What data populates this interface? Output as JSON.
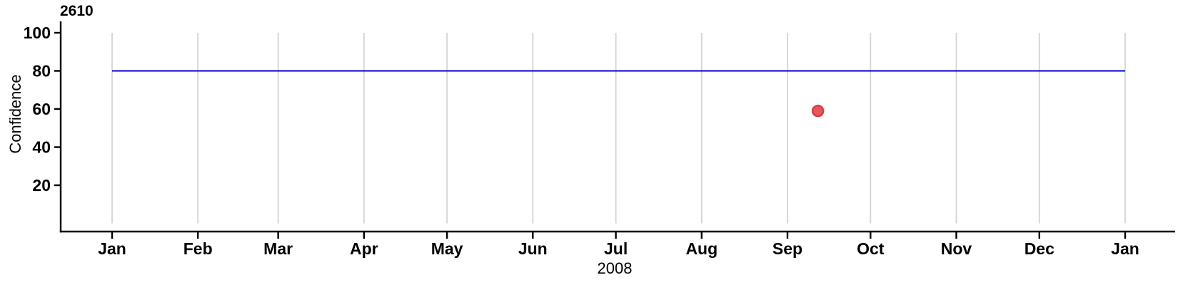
{
  "colors": {
    "background": "#ffffff",
    "axis": "#000000",
    "grid": "#d4d4d4",
    "text": "#000000",
    "reference_line": "#0000cc",
    "point_fill": "#e4575c",
    "point_stroke": "#d93b43"
  },
  "chart_data": {
    "type": "scatter",
    "title": "2610",
    "xlabel": "2008",
    "ylabel": "Confidence",
    "grid": "vertical-month-gridlines-only",
    "legend": "none",
    "x_axis": {
      "unit": "date (year 2008, leap year, month widths proportional to days)",
      "tick_labels": [
        "Jan",
        "Feb",
        "Mar",
        "Apr",
        "May",
        "Jun",
        "Jul",
        "Aug",
        "Sep",
        "Oct",
        "Nov",
        "Dec",
        "Jan"
      ],
      "tick_day_offsets": [
        0,
        31,
        60,
        91,
        121,
        152,
        182,
        213,
        244,
        274,
        305,
        335,
        366
      ],
      "domain_days": [
        0,
        366
      ]
    },
    "y_axis": {
      "ticks": [
        20,
        40,
        60,
        80,
        100
      ],
      "ylim": [
        0,
        100
      ]
    },
    "reference_line": {
      "y": 80,
      "span_days": [
        0,
        366
      ]
    },
    "points": [
      {
        "day_of_year": 255,
        "approx_date": "Sep 12, 2008",
        "y": 59
      }
    ]
  }
}
